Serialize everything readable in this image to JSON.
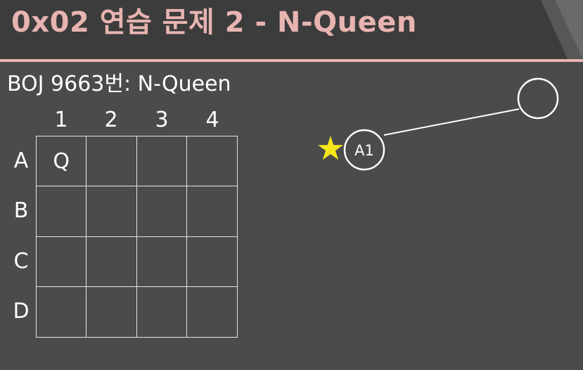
{
  "slide": {
    "title": "0x02  연습 문제 2 - N-Queen",
    "accent_color": "#e8b4b1"
  },
  "problem": {
    "title": "BOJ 9663번: N-Queen"
  },
  "board": {
    "columns": [
      "1",
      "2",
      "3",
      "4"
    ],
    "rows": [
      "A",
      "B",
      "C",
      "D"
    ],
    "cells": [
      [
        "Q",
        "",
        "",
        ""
      ],
      [
        "",
        "",
        "",
        ""
      ],
      [
        "",
        "",
        "",
        ""
      ],
      [
        "",
        "",
        "",
        ""
      ]
    ]
  },
  "tree": {
    "marker_icon": "star-icon",
    "marker_color": "#f5e61b",
    "node_label": "A1",
    "child_label": ""
  }
}
